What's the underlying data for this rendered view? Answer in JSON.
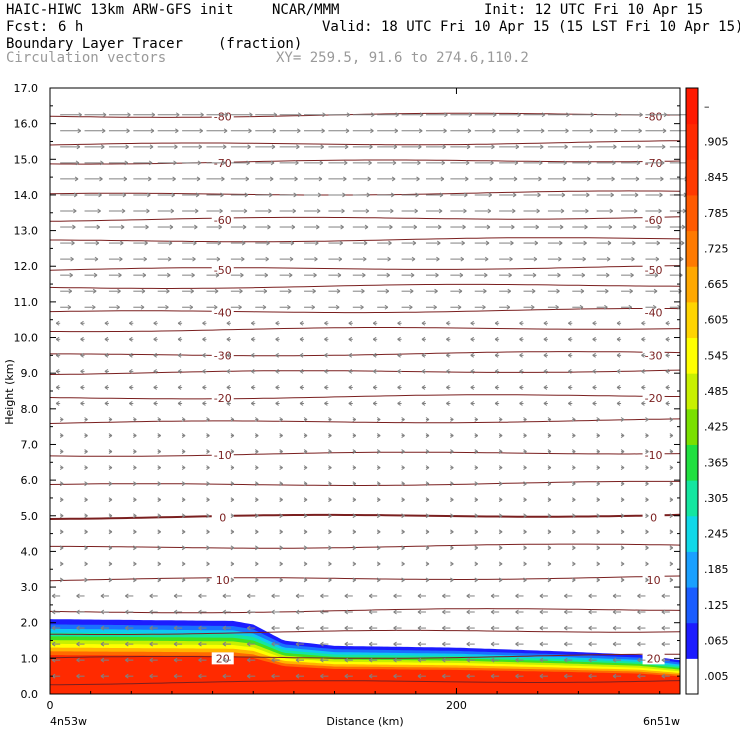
{
  "header": {
    "model_line": "HAIC-HIWC 13km ARW-GFS init",
    "org": "NCAR/MMM",
    "init": "Init: 12 UTC Fri 10 Apr 15",
    "fcst_label": "Fcst:",
    "fcst_value": "6 h",
    "valid": "Valid: 18 UTC Fri 10 Apr 15 (15 LST Fri 10 Apr 15)",
    "field": "Boundary Layer Tracer",
    "field_unit": "(fraction)",
    "vectors": "Circulation vectors",
    "xy": "XY= 259.5, 91.6 to 274.6,110.2"
  },
  "colors": {
    "contour": "#7a1f1f",
    "vector": "#808080",
    "tracer_high": "#ff2a00"
  },
  "chart_data": {
    "type": "heatmap",
    "title": "Boundary Layer Tracer",
    "xlabel": "Distance (km)",
    "ylabel": "Height (km)",
    "xlim": [
      0,
      310
    ],
    "ylim": [
      0,
      17
    ],
    "x_ticks": [
      {
        "value": 0,
        "label": "0"
      },
      {
        "value": 200,
        "label": "200"
      }
    ],
    "x_end_labels": {
      "left": "4n53w",
      "right": "6n51w"
    },
    "y_ticks": [
      0,
      1,
      2,
      3,
      4,
      5,
      6,
      7,
      8,
      9,
      10,
      11,
      12,
      13,
      14,
      15,
      16,
      17
    ],
    "y_tick_labels": [
      "0.0",
      "1.0",
      "2.0",
      "3.0",
      "4.0",
      "5.0",
      "6.0",
      "7.0",
      "8.0",
      "9.0",
      "10.0",
      "11.0",
      "12.0",
      "13.0",
      "14.0",
      "15.0",
      "16.0",
      "17.0"
    ],
    "colorbar": {
      "labels": [
        ".005",
        ".065",
        ".125",
        ".185",
        ".245",
        ".305",
        ".365",
        ".425",
        ".485",
        ".545",
        ".605",
        ".665",
        ".725",
        ".785",
        ".845",
        ".905",
        "–"
      ],
      "colors": [
        "#ffffff",
        "#1c1cff",
        "#1a5cff",
        "#1aa0ff",
        "#10d8e8",
        "#14e6a0",
        "#20e040",
        "#7ae000",
        "#c8f000",
        "#ffff00",
        "#ffd400",
        "#ffa800",
        "#ff7a00",
        "#ff5a00",
        "#ff3a00",
        "#ff2a00",
        "#ff1a00"
      ]
    },
    "tracer_top": [
      {
        "x": 0,
        "h": 2.1
      },
      {
        "x": 90,
        "h": 2.05
      },
      {
        "x": 100,
        "h": 1.95
      },
      {
        "x": 115,
        "h": 1.5
      },
      {
        "x": 140,
        "h": 1.35
      },
      {
        "x": 200,
        "h": 1.3
      },
      {
        "x": 250,
        "h": 1.2
      },
      {
        "x": 290,
        "h": 1.1
      },
      {
        "x": 310,
        "h": 0.95
      }
    ],
    "temperature_contours": [
      {
        "label": "-80",
        "h": 16.2
      },
      {
        "label": "-70",
        "h": 14.9
      },
      {
        "label": "-60",
        "h": 13.3
      },
      {
        "label": "-50",
        "h": 11.9
      },
      {
        "label": "-40",
        "h": 10.7
      },
      {
        "label": "-30",
        "h": 9.5
      },
      {
        "label": "-20",
        "h": 8.3
      },
      {
        "label": "-10",
        "h": 6.7
      },
      {
        "label": "0",
        "h": 4.95
      },
      {
        "label": "10",
        "h": 3.2
      },
      {
        "label": "20",
        "h": 1.0
      }
    ],
    "unlabeled_contours": [
      15.4,
      14.0,
      12.7,
      11.4,
      10.2,
      9.0,
      7.6,
      5.85,
      4.1,
      2.3,
      1.7,
      0.3
    ]
  }
}
